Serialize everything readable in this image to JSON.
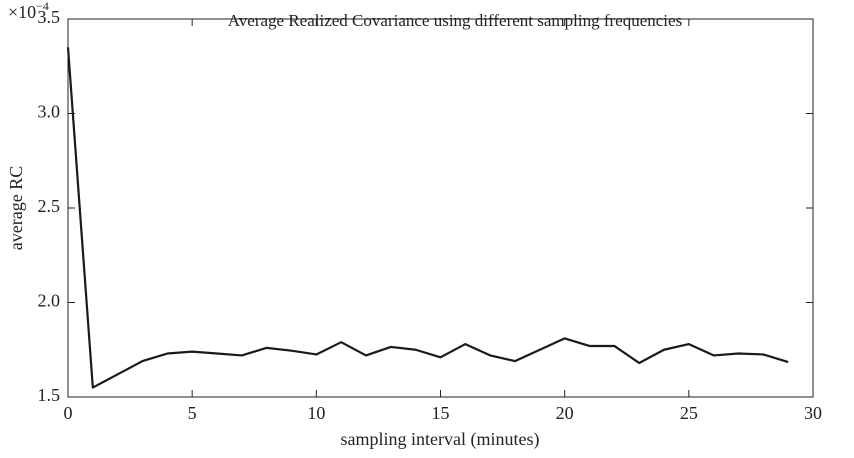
{
  "chart_data": {
    "type": "line",
    "title": "Average Realized Covariance using different sampling frequencies",
    "x_label": "sampling interval (minutes)",
    "y_label": "average RC",
    "y_multiplier": {
      "base": "×10",
      "exponent": "−4"
    },
    "x": [
      0,
      1,
      2,
      3,
      4,
      5,
      6,
      7,
      8,
      9,
      10,
      11,
      12,
      13,
      14,
      15,
      16,
      17,
      18,
      19,
      20,
      21,
      22,
      23,
      24,
      25,
      26,
      27,
      28,
      29
    ],
    "series": [
      {
        "name": "average RC",
        "color": "#1a1a1a",
        "values": [
          3.35,
          1.55,
          1.62,
          1.69,
          1.73,
          1.74,
          1.73,
          1.72,
          1.76,
          1.745,
          1.725,
          1.79,
          1.72,
          1.765,
          1.75,
          1.71,
          1.78,
          1.72,
          1.69,
          1.75,
          1.81,
          1.77,
          1.77,
          1.68,
          1.75,
          1.78,
          1.72,
          1.73,
          1.725,
          1.685
        ]
      }
    ],
    "xlim": [
      0,
      30
    ],
    "xticks": [
      0,
      5,
      10,
      15,
      20,
      25,
      30
    ],
    "ylim": [
      1.5,
      3.5
    ],
    "yticks": [
      1.5,
      {
        "value": 2,
        "label": "2.0"
      },
      2.5,
      {
        "value": 3,
        "label": "3.0"
      },
      3.5
    ],
    "grid": false
  }
}
